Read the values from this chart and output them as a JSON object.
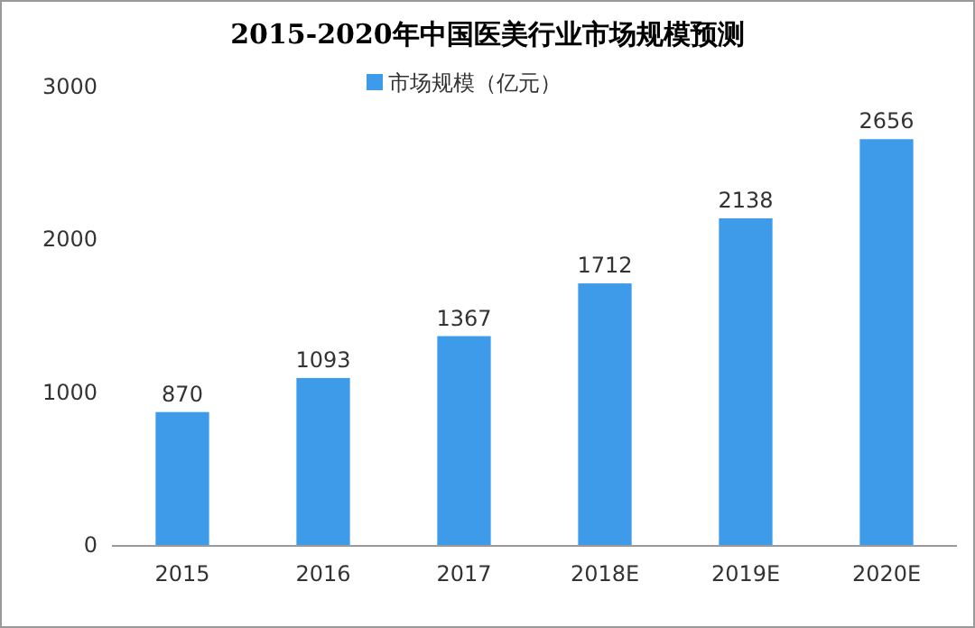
{
  "chart_data": {
    "type": "bar",
    "title": "2015-2020年中国医美行业市场规模预测",
    "categories": [
      "2015",
      "2016",
      "2017",
      "2018E",
      "2019E",
      "2020E"
    ],
    "series": [
      {
        "name": "市场规模（亿元）",
        "color": "#3d9bea",
        "values": [
          870,
          1093,
          1367,
          1712,
          2138,
          2656
        ]
      }
    ],
    "ylim": [
      0,
      3000
    ],
    "yticks": [
      0,
      1000,
      2000,
      3000
    ],
    "data_labels": true,
    "legend": "top",
    "grid": false
  }
}
